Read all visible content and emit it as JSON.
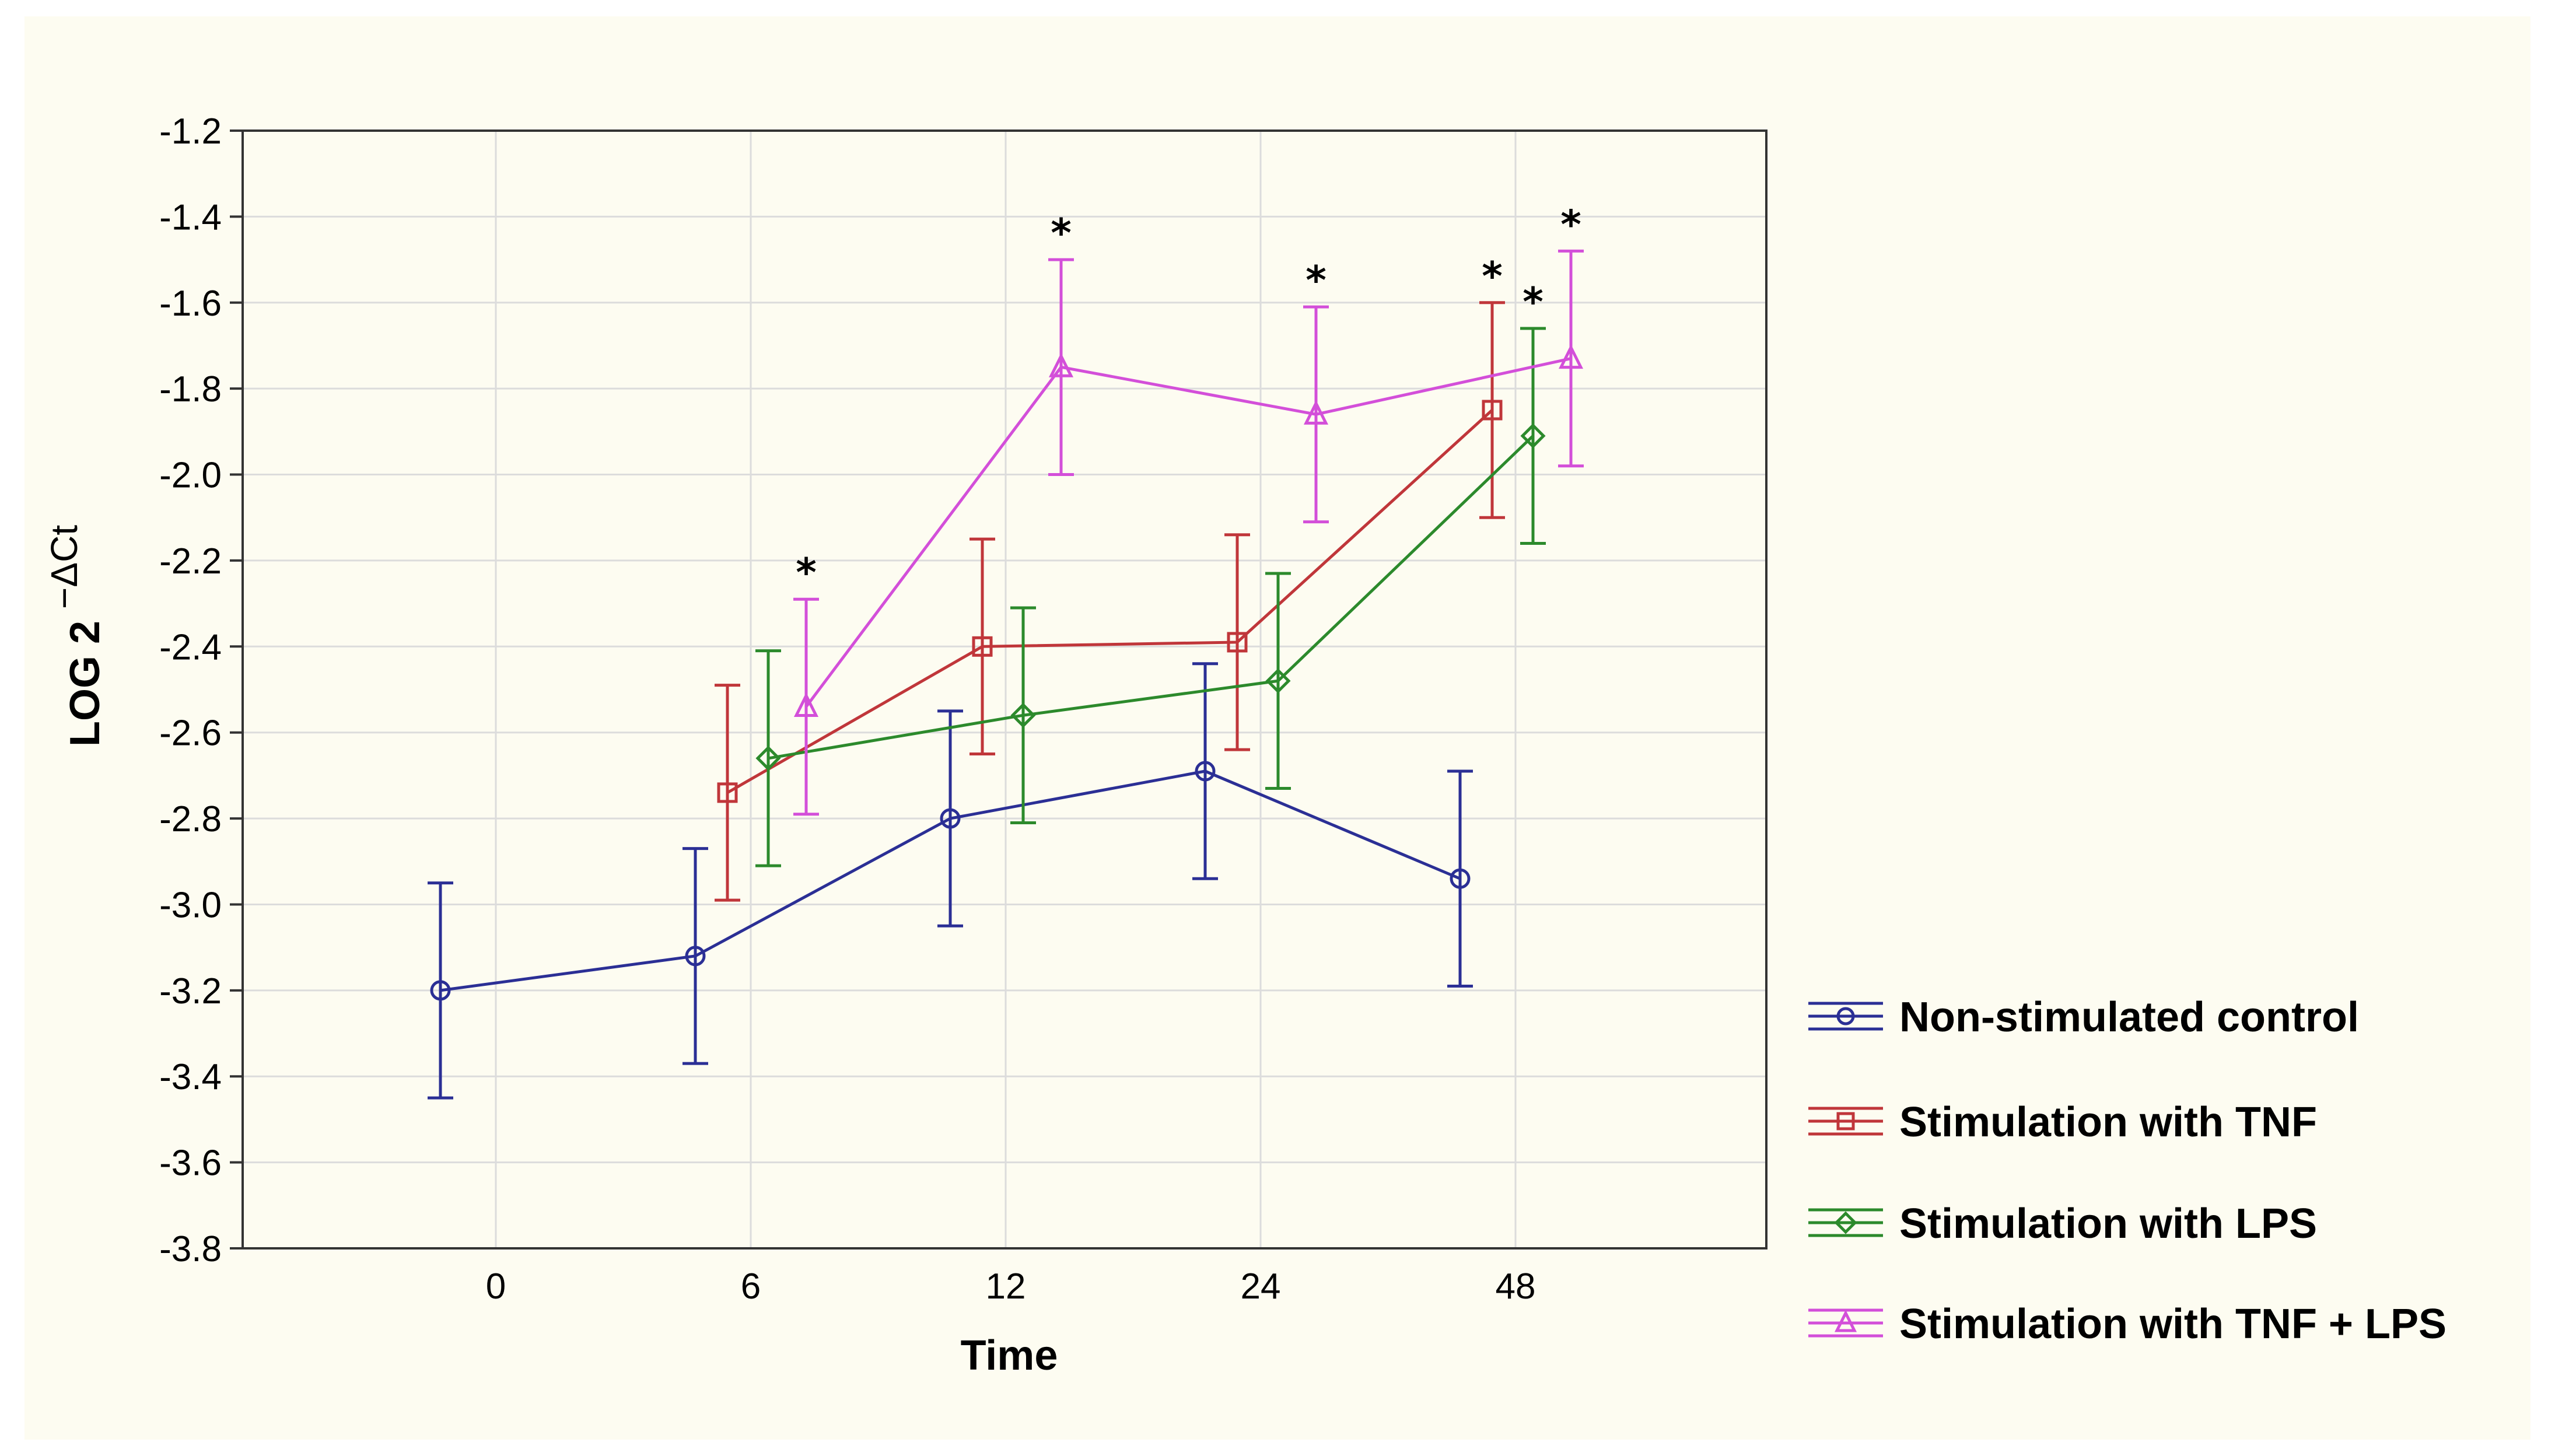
{
  "chart_data": {
    "type": "line",
    "title": "",
    "xlabel": "Time",
    "ylabel_main": "LOG 2",
    "ylabel_exponent": "−ΔCt",
    "categories": [
      "0",
      "6",
      "12",
      "24",
      "48"
    ],
    "ylim": [
      -3.8,
      -1.2
    ],
    "yticks": [
      -1.2,
      -1.4,
      -1.6,
      -1.8,
      -2.0,
      -2.2,
      -2.4,
      -2.6,
      -2.8,
      -3.0,
      -3.2,
      -3.4,
      -3.6,
      -3.8
    ],
    "ytick_labels": [
      "-1.2",
      "-1.4",
      "-1.6",
      "-1.8",
      "-2.0",
      "-2.2",
      "-2.4",
      "-2.6",
      "-2.8",
      "-3.0",
      "-3.2",
      "-3.4",
      "-3.6",
      "-3.8"
    ],
    "grid": true,
    "legend_position": "right-bottom",
    "series": [
      {
        "name": "Non-stimulated control",
        "color": "#2b2f95",
        "marker": "circle",
        "values": [
          -3.2,
          -3.12,
          -2.8,
          -2.69,
          -2.94
        ],
        "errors": [
          0.25,
          0.25,
          0.25,
          0.25,
          0.25
        ],
        "significant": [
          false,
          false,
          false,
          false,
          false
        ]
      },
      {
        "name": "Stimulation with TNF",
        "color": "#c0363a",
        "marker": "square",
        "values": [
          null,
          -2.74,
          -2.4,
          -2.39,
          -1.85
        ],
        "errors": [
          null,
          0.25,
          0.25,
          0.25,
          0.25
        ],
        "significant": [
          false,
          false,
          false,
          false,
          true
        ]
      },
      {
        "name": "Stimulation with LPS",
        "color": "#2c8a2c",
        "marker": "diamond",
        "values": [
          null,
          -2.66,
          -2.56,
          -2.48,
          -1.91
        ],
        "errors": [
          null,
          0.25,
          0.25,
          0.25,
          0.25
        ],
        "significant": [
          false,
          false,
          false,
          false,
          true
        ]
      },
      {
        "name": "Stimulation with TNF + LPS",
        "color": "#d34fd9",
        "marker": "triangle",
        "values": [
          null,
          -2.54,
          -1.75,
          -1.86,
          -1.73
        ],
        "errors": [
          null,
          0.25,
          0.25,
          0.25,
          0.25
        ],
        "significant": [
          false,
          true,
          true,
          true,
          true
        ]
      }
    ],
    "significance_symbol": "*"
  }
}
